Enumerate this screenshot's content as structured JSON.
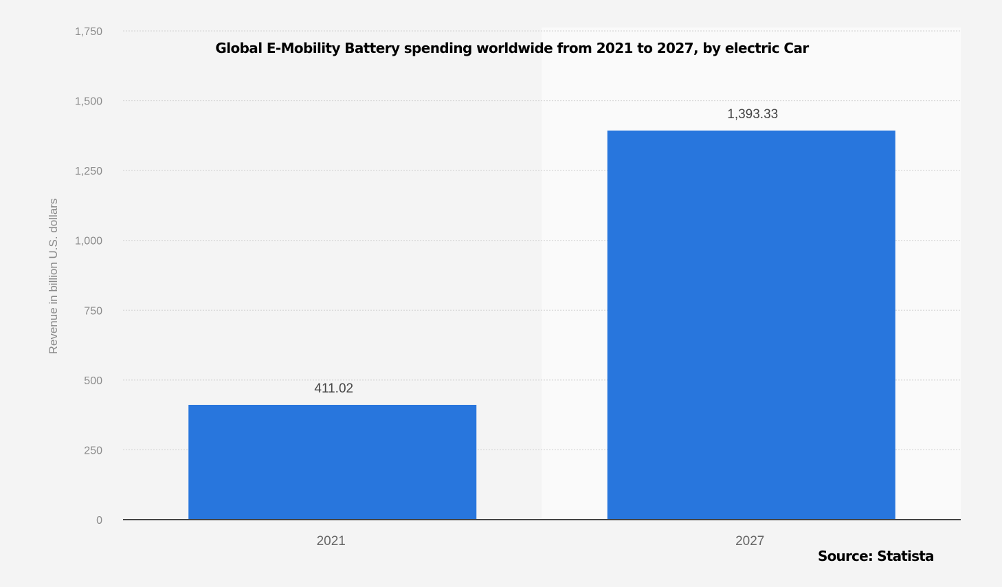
{
  "chart_data": {
    "type": "bar",
    "title": "Global E-Mobility Battery  spending worldwide from 2021 to 2027, by electric Car",
    "categories": [
      "2021",
      "2027"
    ],
    "values": [
      411.02,
      1393.33
    ],
    "value_labels": [
      "411.02",
      "1,393.33"
    ],
    "xlabel": "",
    "ylabel": "Revenue in billion U.S. dollars",
    "ylim": [
      0,
      1750
    ],
    "yticks": [
      0,
      250,
      500,
      750,
      1000,
      1250,
      1500,
      1750
    ],
    "ytick_labels": [
      "0",
      "250",
      "500",
      "750",
      "1,000",
      "1,250",
      "1,500",
      "1,750"
    ],
    "grid": true,
    "bar_color": "#2876dd",
    "source": "Source: Statista"
  }
}
